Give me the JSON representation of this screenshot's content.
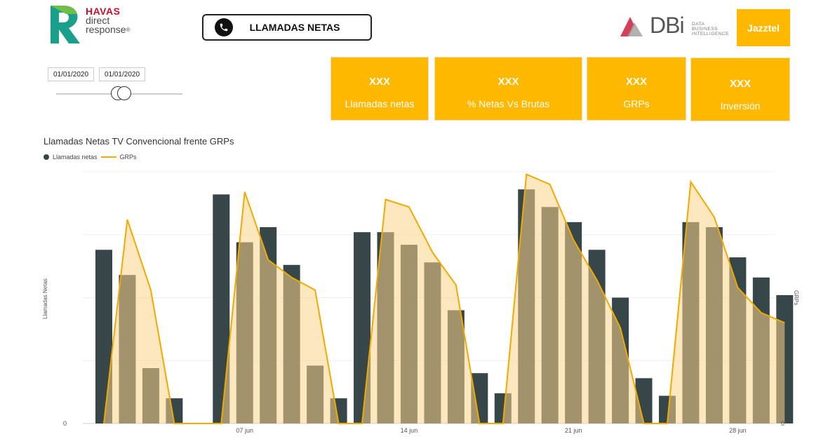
{
  "header": {
    "havas": {
      "brand": "HAVAS",
      "line1": "direct",
      "line2": "response",
      "reg": "®"
    },
    "title_button": "LLAMADAS NETAS",
    "dbi": {
      "text": "DBi",
      "sub1": "DATA",
      "sub2": "BUSINESS",
      "sub3": "INTELLIGENCE"
    },
    "jazztel": "Jazztel"
  },
  "filters": {
    "date_from": "01/01/2020",
    "date_to": "01/01/2020"
  },
  "kpis": [
    {
      "value": "XXX",
      "label": "Llamadas netas"
    },
    {
      "value": "XXX",
      "label": "% Netas Vs Brutas"
    },
    {
      "value": "XXX",
      "label": "GRPs"
    },
    {
      "value": "XXX",
      "label": "Inversión"
    }
  ],
  "colors": {
    "accent": "#ffb800",
    "bar": "#374649",
    "line": "#f0aa00",
    "area": "#fbd38a"
  },
  "chart_data": {
    "type": "bar",
    "title": "Llamadas Netas TV Convencional frente GRPs",
    "ylabel": "Llamadas Netas",
    "y2label": "GRPs",
    "ylim": [
      0,
      100
    ],
    "y2lim": [
      0,
      100
    ],
    "y_tick_labels": [
      "0"
    ],
    "y2_tick_labels": [
      "0"
    ],
    "x_tick_labels": [
      "07 jun",
      "14 jun",
      "21 jun",
      "28 jun"
    ],
    "x_tick_index": [
      6,
      13,
      20,
      27
    ],
    "legend": {
      "position": "top-left"
    },
    "series": [
      {
        "name": "Llamadas netas",
        "type": "bar",
        "values": [
          69,
          59,
          22,
          10,
          null,
          91,
          72,
          78,
          63,
          23,
          10,
          76,
          76,
          71,
          64,
          45,
          20,
          12,
          93,
          86,
          80,
          69,
          50,
          18,
          11,
          80,
          78,
          66,
          58,
          51
        ]
      },
      {
        "name": "GRPs",
        "type": "area-line",
        "values": [
          0,
          81,
          53,
          0,
          0,
          0,
          92,
          65,
          58,
          53,
          0,
          0,
          89,
          86,
          68,
          55,
          0,
          0,
          99,
          95,
          73,
          57,
          38,
          0,
          0,
          96,
          82,
          54,
          44,
          40
        ]
      }
    ]
  }
}
